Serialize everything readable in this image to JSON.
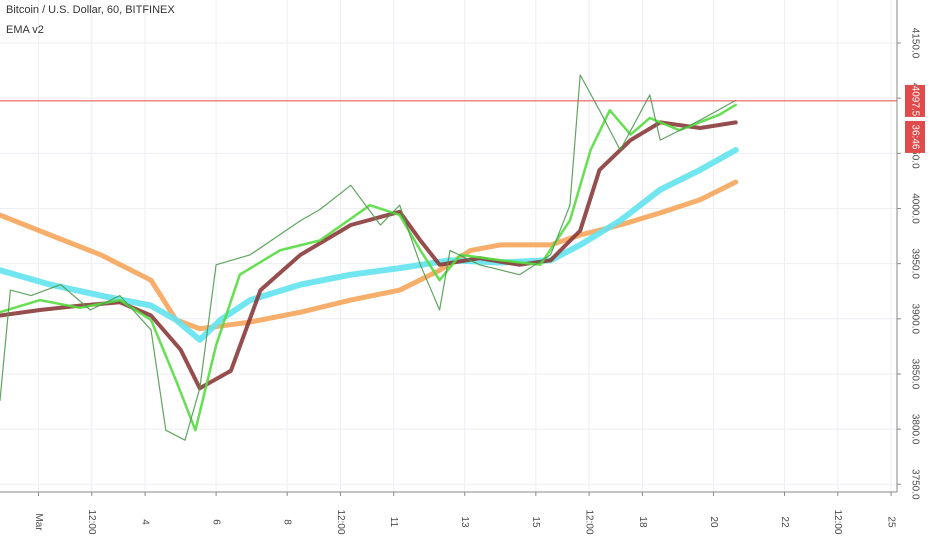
{
  "chart_data": {
    "type": "line",
    "title": "Bitcoin / U.S. Dollar, 60, BITFINEX",
    "subtitle": "EMA v2",
    "xlim": [
      -26,
      580
    ],
    "ylim": [
      3743,
      4189
    ],
    "xticks": [
      {
        "value": 0,
        "label": "Mar"
      },
      {
        "value": 36,
        "label": "12:00"
      },
      {
        "value": 72,
        "label": "4"
      },
      {
        "value": 120,
        "label": "6"
      },
      {
        "value": 168,
        "label": "8"
      },
      {
        "value": 204,
        "label": "12:00"
      },
      {
        "value": 240,
        "label": "11"
      },
      {
        "value": 288,
        "label": "13"
      },
      {
        "value": 336,
        "label": "15"
      },
      {
        "value": 372,
        "label": "12:00"
      },
      {
        "value": 408,
        "label": "18"
      },
      {
        "value": 456,
        "label": "20"
      },
      {
        "value": 504,
        "label": "22"
      },
      {
        "value": 540,
        "label": "12:00"
      },
      {
        "value": 576,
        "label": "25"
      }
    ],
    "yticks": [
      {
        "value": 3750,
        "label": "3750.0"
      },
      {
        "value": 3800,
        "label": "3800.0"
      },
      {
        "value": 3850,
        "label": "3850.0"
      },
      {
        "value": 3900,
        "label": "3900.0"
      },
      {
        "value": 3950,
        "label": "3950.0"
      },
      {
        "value": 4000,
        "label": "4000.0"
      },
      {
        "value": 4050,
        "label": "4050.0"
      },
      {
        "value": 4100,
        "label": "4100.0"
      },
      {
        "value": 4150,
        "label": "4150.0"
      }
    ],
    "grid": true,
    "last_price": 4097.5,
    "last_price_color": "#e04a4a",
    "countdown": "36:46",
    "series": [
      {
        "color": "#f5a55a",
        "width": 5,
        "x": [
          -26,
          8,
          42,
          76,
          93,
          109,
          143,
          177,
          211,
          244,
          271,
          292,
          312,
          346,
          366,
          393,
          420,
          447,
          471
        ],
        "values": [
          3994,
          3976,
          3958,
          3935,
          3899,
          3891,
          3897,
          3906,
          3917,
          3926,
          3944,
          3962,
          3967,
          3967,
          3976,
          3985,
          3996,
          4008,
          4024
        ]
      },
      {
        "color": "#62e3f0",
        "width": 6,
        "x": [
          -26,
          8,
          42,
          76,
          93,
          109,
          123,
          143,
          177,
          211,
          244,
          278,
          312,
          346,
          366,
          393,
          420,
          447,
          471
        ],
        "values": [
          3944,
          3931,
          3921,
          3912,
          3899,
          3881,
          3899,
          3917,
          3931,
          3940,
          3946,
          3953,
          3951,
          3953,
          3967,
          3989,
          4017,
          4035,
          4053
        ]
      },
      {
        "color": "#8b3a3a",
        "width": 4,
        "x": [
          -26,
          1,
          28,
          55,
          76,
          96,
          109,
          130,
          150,
          177,
          211,
          244,
          258,
          271,
          298,
          325,
          346,
          366,
          379,
          400,
          420,
          447,
          471
        ],
        "values": [
          3903,
          3908,
          3912,
          3915,
          3903,
          3872,
          3837,
          3853,
          3926,
          3958,
          3985,
          3997,
          3971,
          3949,
          3955,
          3949,
          3953,
          3980,
          4035,
          4062,
          4078,
          4073,
          4078
        ]
      },
      {
        "color": "#55dd3f",
        "width": 2.5,
        "x": [
          -26,
          1,
          28,
          55,
          76,
          93,
          106,
          120,
          136,
          163,
          190,
          224,
          244,
          258,
          271,
          285,
          312,
          339,
          359,
          373,
          386,
          400,
          413,
          433,
          460,
          471
        ],
        "values": [
          3906,
          3917,
          3910,
          3917,
          3899,
          3844,
          3799,
          3876,
          3940,
          3962,
          3971,
          4003,
          3994,
          3962,
          3935,
          3958,
          3953,
          3949,
          3989,
          4053,
          4089,
          4067,
          4082,
          4071,
          4085,
          4094
        ]
      },
      {
        "color": "#4f9a4f",
        "width": 1.2,
        "x": [
          -26,
          -19,
          -5,
          15,
          35,
          55,
          76,
          86,
          99,
          109,
          120,
          143,
          177,
          190,
          211,
          231,
          244,
          258,
          271,
          278,
          298,
          325,
          346,
          359,
          366,
          379,
          393,
          413,
          420,
          447,
          471
        ],
        "values": [
          3826,
          3926,
          3921,
          3931,
          3908,
          3921,
          3890,
          3799,
          3790,
          3837,
          3949,
          3958,
          3989,
          3999,
          4021,
          3985,
          4003,
          3949,
          3908,
          3962,
          3949,
          3940,
          3958,
          4003,
          4121,
          4089,
          4053,
          4103,
          4062,
          4080,
          4098
        ]
      }
    ]
  }
}
